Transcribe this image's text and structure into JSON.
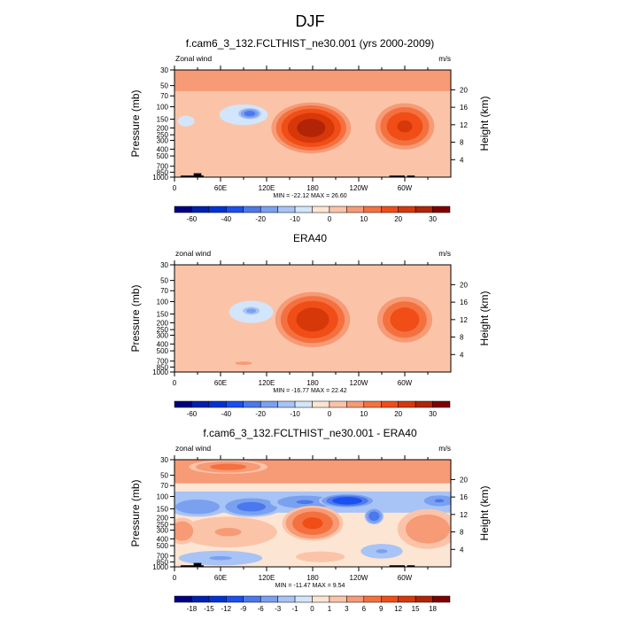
{
  "figure": {
    "title": "DJF"
  },
  "chart_data": [
    {
      "type": "heatmap",
      "title": "f.cam6_3_132.FCLTHIST_ne30.001 (yrs 2000-2009)",
      "left_label": "Zonal wind",
      "right_label": "m/s",
      "xlabel": "",
      "ylabel": "Pressure (mb)",
      "ylabel_right": "Height (km)",
      "x_ticks": [
        "0",
        "60E",
        "120E",
        "180",
        "120W",
        "60W"
      ],
      "x_tick_lon": [
        0,
        60,
        120,
        180,
        240,
        300
      ],
      "xlim": [
        0,
        360
      ],
      "y_ticks": [
        "30",
        "50",
        "70",
        "100",
        "150",
        "200",
        "250",
        "300",
        "400",
        "500",
        "700",
        "850",
        "1000"
      ],
      "y_tick_p": [
        30,
        50,
        70,
        100,
        150,
        200,
        250,
        300,
        400,
        500,
        700,
        850,
        1000
      ],
      "ylim_mb": [
        1000,
        30
      ],
      "y_ticks_right": [
        "20",
        "16",
        "12",
        "8",
        "4"
      ],
      "y_tick_km": [
        20,
        16,
        12,
        8,
        4
      ],
      "stats": "MIN = -22.12  MAX =  26.60",
      "min": -22.12,
      "max": 26.6,
      "colorbar": {
        "levels": [
          -70,
          -60,
          -50,
          -40,
          -30,
          -20,
          -15,
          -10,
          -5,
          0,
          5,
          10,
          15,
          20,
          25,
          30,
          35
        ],
        "labels": [
          "-60",
          "-40",
          "-20",
          "-10",
          "0",
          "10",
          "20",
          "30"
        ],
        "label_box_edges": [
          1,
          3,
          5,
          7,
          9,
          11,
          13,
          15
        ]
      },
      "features": [
        {
          "kind": "band",
          "p_top": 30,
          "p_bot": 60,
          "value": 5
        },
        {
          "kind": "blob",
          "lon": 15,
          "p": 160,
          "dlon": 22,
          "dlogp": 0.16,
          "value": -6
        },
        {
          "kind": "blob",
          "lon": 90,
          "p": 130,
          "dlon": 45,
          "dlogp": 0.22,
          "value": -8
        },
        {
          "kind": "blob",
          "lon": 98,
          "p": 125,
          "dlon": 18,
          "dlogp": 0.1,
          "value": -22
        },
        {
          "kind": "blob",
          "lon": 178,
          "p": 200,
          "dlon": 52,
          "dlogp": 0.38,
          "value": 26.6
        },
        {
          "kind": "blob",
          "lon": 300,
          "p": 190,
          "dlon": 40,
          "dlogp": 0.36,
          "value": 20
        },
        {
          "kind": "blob",
          "lon": 60,
          "p": 450,
          "dlon": 40,
          "dlogp": 0.2,
          "value": 3
        },
        {
          "kind": "blob",
          "lon": 20,
          "p": 650,
          "dlon": 30,
          "dlogp": 0.1,
          "value": -3
        },
        {
          "kind": "blob",
          "lon": 160,
          "p": 900,
          "dlon": 50,
          "dlogp": 0.06,
          "value": -4
        },
        {
          "kind": "blob",
          "lon": 330,
          "p": 700,
          "dlon": 30,
          "dlogp": 0.14,
          "value": -3
        }
      ],
      "topography": [
        {
          "lon_from": 8,
          "lon_to": 38,
          "p_top": 950
        },
        {
          "lon_from": 25,
          "lon_to": 35,
          "p_top": 880
        },
        {
          "lon_from": 280,
          "lon_to": 300,
          "p_top": 950
        },
        {
          "lon_from": 303,
          "lon_to": 313,
          "p_top": 950
        }
      ]
    },
    {
      "type": "heatmap",
      "title": "ERA40",
      "left_label": "zonal wind",
      "right_label": "m/s",
      "xlabel": "",
      "ylabel": "Pressure (mb)",
      "ylabel_right": "Height (km)",
      "x_ticks": [
        "0",
        "60E",
        "120E",
        "180",
        "120W",
        "60W"
      ],
      "x_tick_lon": [
        0,
        60,
        120,
        180,
        240,
        300
      ],
      "xlim": [
        0,
        360
      ],
      "y_ticks": [
        "30",
        "50",
        "70",
        "100",
        "150",
        "200",
        "250",
        "300",
        "400",
        "500",
        "700",
        "850",
        "1000"
      ],
      "y_tick_p": [
        30,
        50,
        70,
        100,
        150,
        200,
        250,
        300,
        400,
        500,
        700,
        850,
        1000
      ],
      "ylim_mb": [
        1000,
        30
      ],
      "y_ticks_right": [
        "20",
        "16",
        "12",
        "8",
        "4"
      ],
      "y_tick_km": [
        20,
        16,
        12,
        8,
        4
      ],
      "stats": "MIN = -16.77  MAX =  22.42",
      "min": -16.77,
      "max": 22.42,
      "colorbar": {
        "levels": [
          -70,
          -60,
          -50,
          -40,
          -30,
          -20,
          -15,
          -10,
          -5,
          0,
          5,
          10,
          15,
          20,
          25,
          30,
          35
        ],
        "labels": [
          "-60",
          "-40",
          "-20",
          "-10",
          "0",
          "10",
          "20",
          "30"
        ],
        "label_box_edges": [
          1,
          3,
          5,
          7,
          9,
          11,
          13,
          15
        ]
      },
      "features": [
        {
          "kind": "blob",
          "lon": 60,
          "p": 200,
          "dlon": 70,
          "dlogp": 0.35,
          "value": -4
        },
        {
          "kind": "blob",
          "lon": 100,
          "p": 140,
          "dlon": 38,
          "dlogp": 0.22,
          "value": -9
        },
        {
          "kind": "blob",
          "lon": 100,
          "p": 135,
          "dlon": 15,
          "dlogp": 0.08,
          "value": -16.77
        },
        {
          "kind": "blob",
          "lon": 180,
          "p": 180,
          "dlon": 50,
          "dlogp": 0.42,
          "value": 22.42
        },
        {
          "kind": "blob",
          "lon": 300,
          "p": 180,
          "dlon": 38,
          "dlogp": 0.36,
          "value": 18
        },
        {
          "kind": "blob",
          "lon": 90,
          "p": 750,
          "dlon": 45,
          "dlogp": 0.1,
          "value": 5
        },
        {
          "kind": "blob",
          "lon": 180,
          "p": 880,
          "dlon": 45,
          "dlogp": 0.07,
          "value": -3
        },
        {
          "kind": "blob",
          "lon": 320,
          "p": 820,
          "dlon": 40,
          "dlogp": 0.08,
          "value": -3
        }
      ],
      "topography": []
    },
    {
      "type": "heatmap",
      "title": "f.cam6_3_132.FCLTHIST_ne30.001 - ERA40",
      "left_label": "zonal wind",
      "right_label": "m/s",
      "xlabel": "",
      "ylabel": "Pressure (mb)",
      "ylabel_right": "Height (km)",
      "x_ticks": [
        "0",
        "60E",
        "120E",
        "180",
        "120W",
        "60W"
      ],
      "x_tick_lon": [
        0,
        60,
        120,
        180,
        240,
        300
      ],
      "xlim": [
        0,
        360
      ],
      "y_ticks": [
        "30",
        "50",
        "70",
        "100",
        "150",
        "200",
        "250",
        "300",
        "400",
        "500",
        "700",
        "850",
        "1000"
      ],
      "y_tick_p": [
        30,
        50,
        70,
        100,
        150,
        200,
        250,
        300,
        400,
        500,
        700,
        850,
        1000
      ],
      "ylim_mb": [
        1000,
        30
      ],
      "y_ticks_right": [
        "20",
        "16",
        "12",
        "8",
        "4"
      ],
      "y_tick_km": [
        20,
        16,
        12,
        8,
        4
      ],
      "stats": "MIN = -11.47  MAX =  9.54",
      "min": -11.47,
      "max": 9.54,
      "colorbar": {
        "levels": [
          -21,
          -18,
          -15,
          -12,
          -9,
          -6,
          -3,
          -1,
          0,
          1,
          3,
          6,
          9,
          12,
          15,
          18,
          21
        ],
        "labels": [
          "-18",
          "-15",
          "-12",
          "-9",
          "-6",
          "-3",
          "-1",
          "0",
          "1",
          "3",
          "6",
          "9",
          "12",
          "15",
          "18"
        ],
        "label_box_edges": [
          1,
          2,
          3,
          4,
          5,
          6,
          7,
          8,
          9,
          10,
          11,
          12,
          13,
          14,
          15
        ]
      },
      "features": [
        {
          "kind": "band",
          "p_top": 30,
          "p_bot": 65,
          "value": 4
        },
        {
          "kind": "blob",
          "lon": 70,
          "p": 38,
          "dlon": 50,
          "dlogp": 0.1,
          "value": 7
        },
        {
          "kind": "band",
          "p_top": 85,
          "p_bot": 170,
          "value": -2
        },
        {
          "kind": "blob",
          "lon": 30,
          "p": 140,
          "dlon": 40,
          "dlogp": 0.15,
          "value": -5
        },
        {
          "kind": "blob",
          "lon": 100,
          "p": 140,
          "dlon": 40,
          "dlogp": 0.15,
          "value": -7
        },
        {
          "kind": "blob",
          "lon": 170,
          "p": 120,
          "dlon": 45,
          "dlogp": 0.12,
          "value": -6
        },
        {
          "kind": "blob",
          "lon": 225,
          "p": 115,
          "dlon": 35,
          "dlogp": 0.1,
          "value": -11.47
        },
        {
          "kind": "blob",
          "lon": 260,
          "p": 190,
          "dlon": 12,
          "dlogp": 0.12,
          "value": -8
        },
        {
          "kind": "blob",
          "lon": 345,
          "p": 115,
          "dlon": 25,
          "dlogp": 0.1,
          "value": -6
        },
        {
          "kind": "blob",
          "lon": 180,
          "p": 240,
          "dlon": 38,
          "dlogp": 0.25,
          "value": 9.54
        },
        {
          "kind": "blob",
          "lon": 70,
          "p": 320,
          "dlon": 70,
          "dlogp": 0.25,
          "value": 3
        },
        {
          "kind": "blob",
          "lon": 10,
          "p": 310,
          "dlon": 20,
          "dlogp": 0.2,
          "value": 5
        },
        {
          "kind": "blob",
          "lon": 330,
          "p": 290,
          "dlon": 40,
          "dlogp": 0.3,
          "value": 5
        },
        {
          "kind": "blob",
          "lon": 60,
          "p": 750,
          "dlon": 60,
          "dlogp": 0.12,
          "value": -3
        },
        {
          "kind": "blob",
          "lon": 190,
          "p": 720,
          "dlon": 40,
          "dlogp": 0.1,
          "value": 2
        },
        {
          "kind": "blob",
          "lon": 270,
          "p": 600,
          "dlon": 30,
          "dlogp": 0.12,
          "value": -3
        }
      ],
      "topography": [
        {
          "lon_from": 8,
          "lon_to": 38,
          "p_top": 950
        },
        {
          "lon_from": 25,
          "lon_to": 35,
          "p_top": 880
        },
        {
          "lon_from": 280,
          "lon_to": 300,
          "p_top": 950
        },
        {
          "lon_from": 303,
          "lon_to": 313,
          "p_top": 950
        }
      ]
    }
  ],
  "colormap": [
    "#00007f",
    "#0020b0",
    "#0033d6",
    "#1a4ff0",
    "#4b78ec",
    "#7aa0f0",
    "#a8c3f5",
    "#d3e5fb",
    "#fde5d3",
    "#fbc4a8",
    "#f79a76",
    "#f4713f",
    "#f14d17",
    "#d73809",
    "#b22406",
    "#7f0000"
  ]
}
